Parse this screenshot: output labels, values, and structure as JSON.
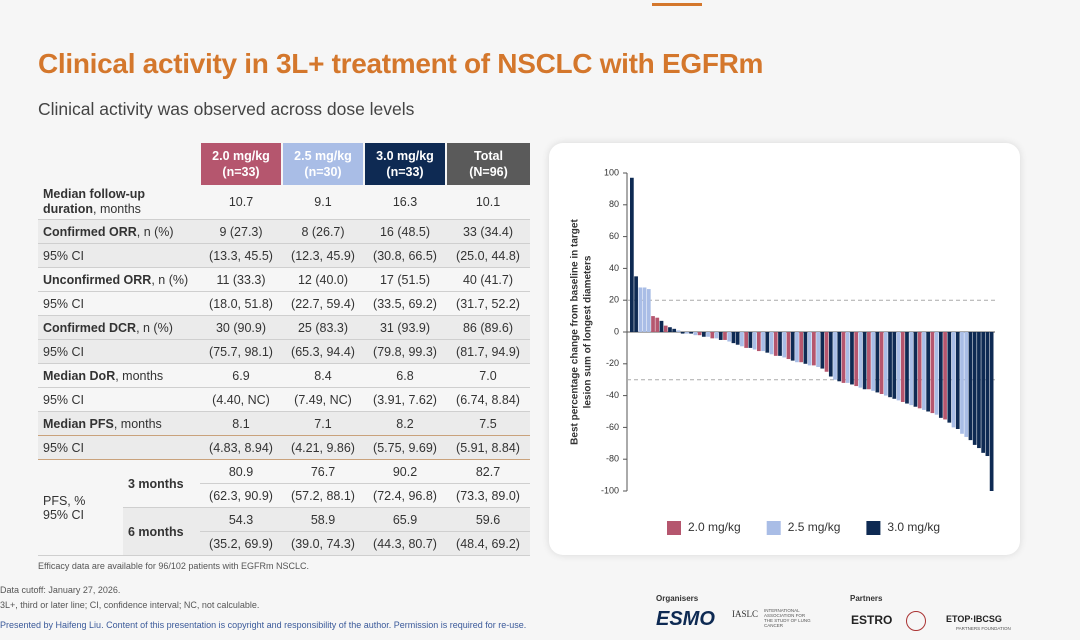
{
  "header": {
    "title": "Clinical activity in 3L+ treatment of NSCLC with EGFRm",
    "subtitle": "Clinical activity was observed across dose levels"
  },
  "table": {
    "columns": [
      {
        "label": "2.0 mg/kg",
        "sub": "(n=33)",
        "color": "#b5566e"
      },
      {
        "label": "2.5 mg/kg",
        "sub": "(n=30)",
        "color": "#a9bde6"
      },
      {
        "label": "3.0 mg/kg",
        "sub": "(n=33)",
        "color": "#0e2a53"
      },
      {
        "label": "Total",
        "sub": "(N=96)",
        "color": "#5a5a5a"
      }
    ],
    "rows": [
      {
        "label": "Median follow-up duration",
        "unit": ", months",
        "cells": [
          "10.7",
          "9.1",
          "16.3",
          "10.1"
        ],
        "shaded": false
      },
      {
        "label": "Confirmed ORR",
        "unit": ", n (%)",
        "cells": [
          "9 (27.3)",
          "8 (26.7)",
          "16 (48.5)",
          "33 (34.4)"
        ],
        "shaded": true
      },
      {
        "label": "95% CI",
        "cells": [
          "(13.3, 45.5)",
          "(12.3, 45.9)",
          "(30.8, 66.5)",
          "(25.0, 44.8)"
        ],
        "shaded": true
      },
      {
        "label": "Unconfirmed ORR",
        "unit": ", n (%)",
        "cells": [
          "11 (33.3)",
          "12 (40.0)",
          "17 (51.5)",
          "40 (41.7)"
        ],
        "shaded": false
      },
      {
        "label": "95% CI",
        "cells": [
          "(18.0, 51.8)",
          "(22.7, 59.4)",
          "(33.5, 69.2)",
          "(31.7, 52.2)"
        ],
        "shaded": false
      },
      {
        "label": "Confirmed DCR",
        "unit": ", n (%)",
        "cells": [
          "30 (90.9)",
          "25 (83.3)",
          "31 (93.9)",
          "86 (89.6)"
        ],
        "shaded": true
      },
      {
        "label": "95% CI",
        "cells": [
          "(75.7, 98.1)",
          "(65.3, 94.4)",
          "(79.8, 99.3)",
          "(81.7, 94.9)"
        ],
        "shaded": true
      },
      {
        "label": "Median DoR",
        "unit": ", months",
        "cells": [
          "6.9",
          "8.4",
          "6.8",
          "7.0"
        ],
        "shaded": false
      },
      {
        "label": "95% CI",
        "cells": [
          "(4.40, NC)",
          "(7.49, NC)",
          "(3.91, 7.62)",
          "(6.74, 8.84)"
        ],
        "shaded": false
      },
      {
        "label": "Median PFS",
        "unit": ", months",
        "cells": [
          "8.1",
          "7.1",
          "8.2",
          "7.5"
        ],
        "shaded": true
      },
      {
        "label": "95% CI",
        "cells": [
          "(4.83, 8.94)",
          "(4.21, 9.86)",
          "(5.75, 9.69)",
          "(5.91, 8.84)"
        ],
        "shaded": true
      }
    ],
    "pfs": {
      "label": "PFS, %",
      "ci_label": "95% CI",
      "groups": [
        {
          "label": "3 months",
          "values": [
            "80.9",
            "76.7",
            "90.2",
            "82.7"
          ],
          "ci": [
            "(62.3, 90.9)",
            "(57.2, 88.1)",
            "(72.4, 96.8)",
            "(73.3, 89.0)"
          ],
          "shaded": false
        },
        {
          "label": "6 months",
          "values": [
            "54.3",
            "58.9",
            "65.9",
            "59.6"
          ],
          "ci": [
            "(35.2, 69.9)",
            "(39.0, 74.3)",
            "(44.3, 80.7)",
            "(48.4, 69.2)"
          ],
          "shaded": true
        }
      ]
    },
    "note": "Efficacy data are available for 96/102 patients with EGFRm NSCLC."
  },
  "chart_data": {
    "type": "bar",
    "ylabel": [
      "Best percentage change from baseline in target",
      "lesion sum of longest diameters"
    ],
    "ylim": [
      -100,
      100
    ],
    "yticks": [
      100,
      80,
      60,
      40,
      20,
      0,
      -20,
      -40,
      -60,
      -80,
      -100
    ],
    "ref_lines": [
      20,
      -30
    ],
    "legend": "bottom",
    "series": [
      {
        "name": "2.0 mg/kg",
        "color": "#b5566e",
        "values": [
          null,
          null,
          null,
          null,
          null,
          10,
          9,
          null,
          4,
          null,
          null,
          null,
          null,
          null,
          null,
          null,
          -2,
          null,
          null,
          -4,
          null,
          null,
          -5,
          null,
          null,
          null,
          null,
          -10,
          null,
          null,
          -12,
          null,
          null,
          null,
          -15,
          null,
          null,
          -17,
          null,
          null,
          -19,
          null,
          null,
          -21,
          null,
          null,
          -25,
          null,
          null,
          null,
          -32,
          null,
          null,
          -34,
          null,
          null,
          -36,
          null,
          null,
          -39,
          null,
          null,
          null,
          null,
          -44,
          null,
          null,
          null,
          -48,
          null,
          null,
          -51,
          null,
          null,
          -55,
          null,
          null,
          null,
          null,
          null,
          null,
          null,
          null,
          null,
          null,
          null
        ]
      },
      {
        "name": "2.5 mg/kg",
        "color": "#a9bde6",
        "values": [
          null,
          null,
          28,
          28,
          27,
          null,
          null,
          null,
          null,
          null,
          null,
          1,
          null,
          -1,
          null,
          -2,
          null,
          null,
          -3,
          null,
          -4,
          null,
          null,
          -6,
          null,
          null,
          -9,
          null,
          null,
          -11,
          null,
          -12,
          null,
          -14,
          null,
          null,
          -16,
          null,
          null,
          -19,
          null,
          null,
          -21,
          null,
          -22,
          null,
          null,
          null,
          -30,
          null,
          null,
          -32,
          null,
          null,
          -35,
          null,
          null,
          -37,
          null,
          null,
          -40,
          null,
          null,
          -43,
          null,
          null,
          -46,
          null,
          null,
          -49,
          null,
          null,
          -52,
          null,
          null,
          null,
          -60,
          null,
          -64,
          -66,
          null,
          null,
          null,
          null,
          null,
          null
        ]
      },
      {
        "name": "3.0 mg/kg",
        "color": "#0e2a53",
        "values": [
          97,
          35,
          null,
          null,
          null,
          null,
          null,
          7,
          null,
          3,
          2,
          null,
          -1,
          null,
          -1,
          null,
          null,
          -3,
          null,
          null,
          null,
          -5,
          null,
          null,
          -7,
          -8,
          null,
          null,
          -10,
          null,
          null,
          null,
          -13,
          null,
          null,
          -15,
          null,
          null,
          -18,
          null,
          null,
          -20,
          null,
          null,
          null,
          -23,
          null,
          -28,
          null,
          -31,
          null,
          null,
          -33,
          null,
          null,
          -36,
          null,
          null,
          -38,
          null,
          null,
          -41,
          -42,
          null,
          null,
          -45,
          null,
          -47,
          null,
          null,
          -50,
          null,
          null,
          -54,
          null,
          -57,
          null,
          -61,
          null,
          null,
          -68,
          -71,
          -73,
          -76,
          -78,
          -100
        ]
      }
    ]
  },
  "footer": {
    "cutoff": "Data cutoff: January 27, 2026.",
    "abbrev": "3L+, third or later line; CI, confidence interval; NC, not calculable.",
    "presented": "Presented by Haifeng Liu. Content of this presentation is copyright and responsibility of the author. Permission is required for re-use."
  },
  "logos": {
    "organisers": "Organisers",
    "esmo": "ESMO",
    "iaslc": "IASLC",
    "iaslc_full": "INTERNATIONAL ASSOCIATION FOR THE STUDY OF LUNG CANCER",
    "partners": "Partners",
    "estro": "ESTRO",
    "etop": "ETOP·IBCSG",
    "etop_sub": "PARTNERS FOUNDATION"
  }
}
